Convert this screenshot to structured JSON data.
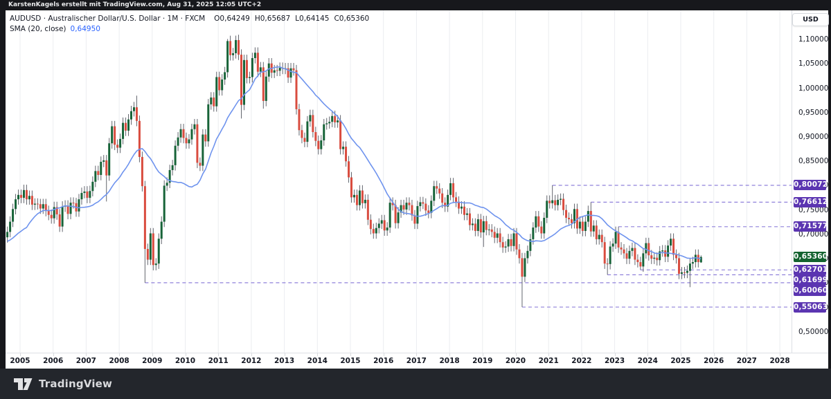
{
  "header": {
    "text": "KarstenKagels erstellt mit TradingView.com, Aug 31, 2025 12:05 UTC+2"
  },
  "legend": {
    "symbol_line": "AUDUSD · Australischer Dollar/U.S. Dollar · 1M · FXCM",
    "ohlc": [
      {
        "k": "O",
        "v": "0,64249"
      },
      {
        "k": "H",
        "v": "0,65687"
      },
      {
        "k": "L",
        "v": "0,64145"
      },
      {
        "k": "C",
        "v": "0,65360"
      }
    ],
    "sma_label": "SMA (20, close)",
    "sma_value": "0,64950"
  },
  "axis": {
    "currency": "USD",
    "price_ticks": [
      {
        "label": "1,10000",
        "value": 1.1
      },
      {
        "label": "1,05000",
        "value": 1.05
      },
      {
        "label": "1,00000",
        "value": 1.0
      },
      {
        "label": "0,95000",
        "value": 0.95
      },
      {
        "label": "0,90000",
        "value": 0.9
      },
      {
        "label": "0,85000",
        "value": 0.85
      },
      {
        "label": "0,80000",
        "value": 0.8
      },
      {
        "label": "0,75000",
        "value": 0.75
      },
      {
        "label": "0,70000",
        "value": 0.7
      },
      {
        "label": "0,65000",
        "value": 0.65
      },
      {
        "label": "0,60000",
        "value": 0.6
      },
      {
        "label": "0,55000",
        "value": 0.55
      },
      {
        "label": "0,50000",
        "value": 0.5
      }
    ],
    "years": [
      2005,
      2006,
      2007,
      2008,
      2009,
      2010,
      2011,
      2012,
      2013,
      2014,
      2015,
      2016,
      2017,
      2018,
      2019,
      2020,
      2021,
      2022,
      2023,
      2024,
      2025,
      2026,
      2027,
      2028
    ]
  },
  "footer": {
    "brand": "TradingView"
  },
  "colors": {
    "up": "#176338",
    "down": "#d94c3f",
    "wick": "#62656d",
    "sma": "#6e93ee",
    "grid": "#ebedf0",
    "level_dash": "#8f80da",
    "badge_purple": "#5b35b1",
    "badge_green": "#13622f",
    "axis_text": "#131722"
  },
  "chart_data": {
    "type": "candlestick",
    "title": "AUDUSD Australischer Dollar/U.S. Dollar, Monthly, FXCM",
    "symbol": "AUDUSD",
    "interval": "1M",
    "source": "FXCM",
    "start_month": "2004-08",
    "end_month": "2025-08",
    "ylim": [
      0.457,
      1.16
    ],
    "first_open": 0.694,
    "default_wick": 0.011,
    "closes": [
      0.705,
      0.726,
      0.752,
      0.772,
      0.781,
      0.775,
      0.791,
      0.772,
      0.779,
      0.761,
      0.763,
      0.762,
      0.753,
      0.762,
      0.748,
      0.74,
      0.733,
      0.756,
      0.741,
      0.716,
      0.757,
      0.759,
      0.742,
      0.765,
      0.764,
      0.747,
      0.772,
      0.785,
      0.788,
      0.775,
      0.789,
      0.808,
      0.83,
      0.822,
      0.849,
      0.852,
      0.821,
      0.887,
      0.922,
      0.884,
      0.878,
      0.896,
      0.929,
      0.913,
      0.936,
      0.953,
      0.961,
      0.933,
      0.859,
      0.799,
      0.67,
      0.648,
      0.702,
      0.637,
      0.64,
      0.691,
      0.726,
      0.8,
      0.806,
      0.832,
      0.842,
      0.882,
      0.899,
      0.916,
      0.898,
      0.887,
      0.895,
      0.916,
      0.926,
      0.847,
      0.841,
      0.905,
      0.891,
      0.967,
      0.981,
      0.963,
      1.023,
      0.996,
      1.018,
      1.033,
      1.097,
      1.068,
      1.072,
      1.099,
      1.069,
      0.966,
      1.058,
      1.021,
      1.023,
      1.062,
      1.073,
      1.034,
      1.043,
      0.974,
      1.024,
      1.051,
      1.032,
      1.037,
      1.036,
      1.042,
      1.04,
      1.041,
      1.022,
      1.041,
      1.037,
      0.957,
      0.914,
      0.898,
      0.89,
      0.932,
      0.945,
      0.91,
      0.892,
      0.875,
      0.893,
      0.926,
      0.928,
      0.931,
      0.943,
      0.93,
      0.934,
      0.875,
      0.88,
      0.85,
      0.817,
      0.776,
      0.781,
      0.76,
      0.79,
      0.764,
      0.771,
      0.73,
      0.711,
      0.702,
      0.713,
      0.722,
      0.729,
      0.708,
      0.714,
      0.765,
      0.76,
      0.723,
      0.745,
      0.76,
      0.751,
      0.765,
      0.76,
      0.739,
      0.722,
      0.758,
      0.766,
      0.763,
      0.749,
      0.744,
      0.769,
      0.799,
      0.794,
      0.784,
      0.765,
      0.757,
      0.781,
      0.805,
      0.776,
      0.767,
      0.753,
      0.757,
      0.74,
      0.743,
      0.719,
      0.722,
      0.707,
      0.731,
      0.704,
      0.727,
      0.709,
      0.71,
      0.705,
      0.693,
      0.702,
      0.684,
      0.673,
      0.675,
      0.69,
      0.676,
      0.702,
      0.669,
      0.651,
      0.613,
      0.651,
      0.666,
      0.69,
      0.714,
      0.737,
      0.716,
      0.702,
      0.734,
      0.769,
      0.764,
      0.77,
      0.76,
      0.771,
      0.773,
      0.75,
      0.734,
      0.731,
      0.723,
      0.752,
      0.712,
      0.726,
      0.707,
      0.726,
      0.748,
      0.706,
      0.718,
      0.69,
      0.699,
      0.684,
      0.64,
      0.639,
      0.675,
      0.681,
      0.705,
      0.673,
      0.669,
      0.661,
      0.65,
      0.666,
      0.672,
      0.648,
      0.643,
      0.634,
      0.661,
      0.682,
      0.657,
      0.65,
      0.652,
      0.647,
      0.665,
      0.667,
      0.654,
      0.677,
      0.691,
      0.658,
      0.651,
      0.619,
      0.622,
      0.621,
      0.625,
      0.64,
      0.643,
      0.658,
      0.643,
      0.6536
    ],
    "overrides": {
      "36": {
        "l": 0.7675
      },
      "47": {
        "h": 0.9849
      },
      "50": {
        "l": 0.6006
      },
      "80": {
        "h": 1.1012
      },
      "83": {
        "h": 1.1081
      },
      "85": {
        "l": 0.938
      },
      "93": {
        "l": 0.9581
      },
      "173": {
        "l": 0.6741
      },
      "187": {
        "l": 0.55063
      },
      "198": {
        "h": 0.80072
      },
      "212": {
        "h": 0.76612
      },
      "218": {
        "l": 0.61699
      },
      "222": {
        "h": 0.71577
      },
      "230": {
        "l": 0.62701
      },
      "248": {
        "l": 0.5915
      },
      "252": {
        "o": 0.64249,
        "h": 0.65687,
        "l": 0.64145,
        "c": 0.6536
      }
    },
    "sma": {
      "period": 20,
      "seed": [
        0.6,
        0.615,
        0.63,
        0.655,
        0.685,
        0.7,
        0.74,
        0.745,
        0.735,
        0.71,
        0.692,
        0.7
      ],
      "last_value": 0.6495
    },
    "levels": [
      {
        "label": "0,80072",
        "price": 0.80072,
        "start": 198
      },
      {
        "label": "0,76612",
        "price": 0.76612,
        "start": 212
      },
      {
        "label": "0,71577",
        "price": 0.71577,
        "start": 222
      },
      {
        "label": "0,62701",
        "price": 0.62701,
        "start": 230
      },
      {
        "label": "0,61699",
        "price": 0.61699,
        "start": 218
      },
      {
        "label": "0,60060",
        "price": 0.6006,
        "start": 50
      },
      {
        "label": "0,55063",
        "price": 0.55063,
        "start": 187
      }
    ],
    "last_price": {
      "label": "0,65360",
      "price": 0.6536
    }
  }
}
